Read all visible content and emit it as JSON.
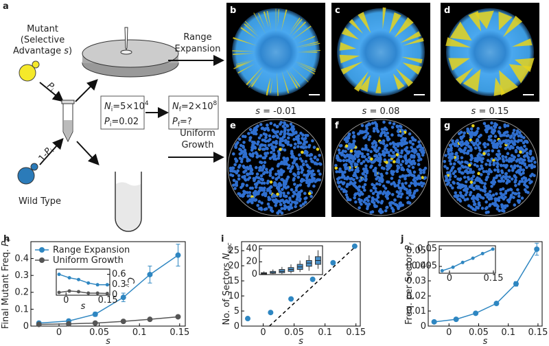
{
  "schematic": {
    "panel": "a",
    "mutant": [
      "Mutant",
      "(Selective",
      "Advantage "
    ],
    "s": "s",
    "mutant_close": ")",
    "p_label": {
      "var": "P",
      "sub": "i"
    },
    "wt_label": {
      "pre": "1-",
      "var": "P",
      "sub": "i"
    },
    "wild_type": "Wild Type",
    "range": [
      "Range",
      "Expansion"
    ],
    "uniform": [
      "Uniform",
      "Growth"
    ],
    "initial": [
      {
        "var": "N",
        "sub": "i",
        "text": "=5×10",
        "sup": "4"
      },
      {
        "var": "P",
        "sub": "i",
        "text": "=0.02"
      }
    ],
    "final": [
      {
        "var": "N",
        "sub": "f",
        "text": "=2×10",
        "sup": "8"
      },
      {
        "var": "P",
        "sub": "f",
        "text": "=?"
      }
    ]
  },
  "images": [
    {
      "panel": "b",
      "s_label": "s",
      "s_text": " = -0.01"
    },
    {
      "panel": "c",
      "s_label": "s",
      "s_text": " = 0.08"
    },
    {
      "panel": "d",
      "s_label": "s",
      "s_text": " = 0.15"
    },
    {
      "panel": "e"
    },
    {
      "panel": "f"
    },
    {
      "panel": "g"
    }
  ],
  "chart_data": [
    {
      "type": "line",
      "panel": "h",
      "xlabel": "s",
      "ylabel": "Final Mutant Freq. ",
      "ylabel_var": "P",
      "ylabel_sub": "f",
      "x": [
        -0.025,
        0.012,
        0.045,
        0.08,
        0.113,
        0.148
      ],
      "xlim": [
        -0.035,
        0.157
      ],
      "xticks": [
        0,
        0.05,
        0.1,
        0.15
      ],
      "ylim": [
        0,
        0.5
      ],
      "yticks": [
        0,
        0.1,
        0.2,
        0.3,
        0.4
      ],
      "legend": "upper left",
      "series": [
        {
          "name": "Range Expansion",
          "color": "#2e86c1",
          "values": [
            0.018,
            0.03,
            0.07,
            0.17,
            0.305,
            0.42
          ],
          "errors": [
            0.004,
            0.006,
            0.012,
            0.025,
            0.05,
            0.065
          ]
        },
        {
          "name": "Uniform Growth",
          "color": "#555555",
          "values": [
            0.01,
            0.013,
            0.018,
            0.028,
            0.04,
            0.055
          ]
        }
      ]
    },
    {
      "type": "line",
      "xlabel": "s",
      "ylabel": "C",
      "ylabel_sub": "V",
      "y_axis_side": "right",
      "x": [
        -0.025,
        0.012,
        0.045,
        0.08,
        0.113,
        0.148
      ],
      "xlim": [
        -0.035,
        0.157
      ],
      "xticks": [
        0,
        0.15
      ],
      "ylim": [
        0,
        0.75
      ],
      "yticks": [
        0,
        0.3,
        0.6
      ],
      "series": [
        {
          "name": "Range Expansion",
          "color": "#2e86c1",
          "values": [
            0.6,
            0.5,
            0.45,
            0.35,
            0.3,
            0.3
          ]
        },
        {
          "name": "Uniform Growth",
          "color": "#555555",
          "values": [
            0.08,
            0.12,
            0.1,
            0.06,
            0.06,
            0.05
          ]
        }
      ]
    },
    {
      "type": "scatter",
      "panel": "i",
      "xlabel": "s",
      "ylabel": "No. of Sectors ",
      "ylabel_var": "N",
      "ylabel_sub": "sec",
      "x": [
        -0.025,
        0.012,
        0.045,
        0.08,
        0.113,
        0.148
      ],
      "values": [
        2.5,
        4.5,
        9,
        15.5,
        21,
        26.5
      ],
      "color": "#2e86c1",
      "fit_x": [
        0.01,
        0.15
      ],
      "fit_values": [
        0,
        26.5
      ],
      "xlim": [
        -0.035,
        0.157
      ],
      "xticks": [
        0,
        0.05,
        0.1,
        0.15
      ],
      "ylim": [
        0,
        28
      ],
      "yticks": [
        0,
        5,
        10,
        15,
        20,
        25
      ]
    },
    {
      "type": "box",
      "categories": [
        null,
        null,
        null,
        null,
        null,
        null,
        null
      ],
      "color": "#4a90c8",
      "whislo": [
        0,
        1,
        1,
        2,
        4,
        6,
        9
      ],
      "q1": [
        1,
        2,
        3,
        5,
        8,
        13,
        16
      ],
      "med": [
        2,
        3,
        5,
        8,
        12,
        18,
        22
      ],
      "q3": [
        3,
        5,
        8,
        11,
        16,
        22,
        28
      ],
      "whishi": [
        5,
        8,
        12,
        16,
        22,
        30,
        38
      ],
      "ylim": [
        0,
        45
      ],
      "yticks": [
        0,
        20,
        40
      ]
    },
    {
      "type": "line",
      "panel": "j",
      "xlabel": "s",
      "ylabel": "Freq. per Sector ",
      "ylabel_var": "P",
      "ylabel_sub": "f",
      "x": [
        -0.025,
        0.012,
        0.045,
        0.08,
        0.113,
        0.148
      ],
      "values": [
        0.0028,
        0.0045,
        0.0085,
        0.015,
        0.028,
        0.051
      ],
      "errors": [
        0.0003,
        0.0004,
        0.0006,
        0.001,
        0.0015,
        0.004
      ],
      "color": "#2e86c1",
      "xlim": [
        -0.035,
        0.157
      ],
      "xticks": [
        0,
        0.05,
        0.1,
        0.15
      ],
      "ylim": [
        0,
        0.056
      ],
      "yticks": [
        0,
        0.01,
        0.02,
        0.03,
        0.04,
        0.05
      ]
    },
    {
      "type": "line",
      "log_y": true,
      "x": [
        -0.025,
        0.012,
        0.045,
        0.08,
        0.113,
        0.148
      ],
      "values": [
        0.0028,
        0.0045,
        0.0085,
        0.015,
        0.028,
        0.051
      ],
      "color": "#2e86c1",
      "xlim": [
        -0.035,
        0.157
      ],
      "xticks": [
        0,
        0.15
      ],
      "ylim": [
        0.002,
        0.08
      ],
      "yticks": [
        0.005,
        0.05
      ]
    }
  ]
}
